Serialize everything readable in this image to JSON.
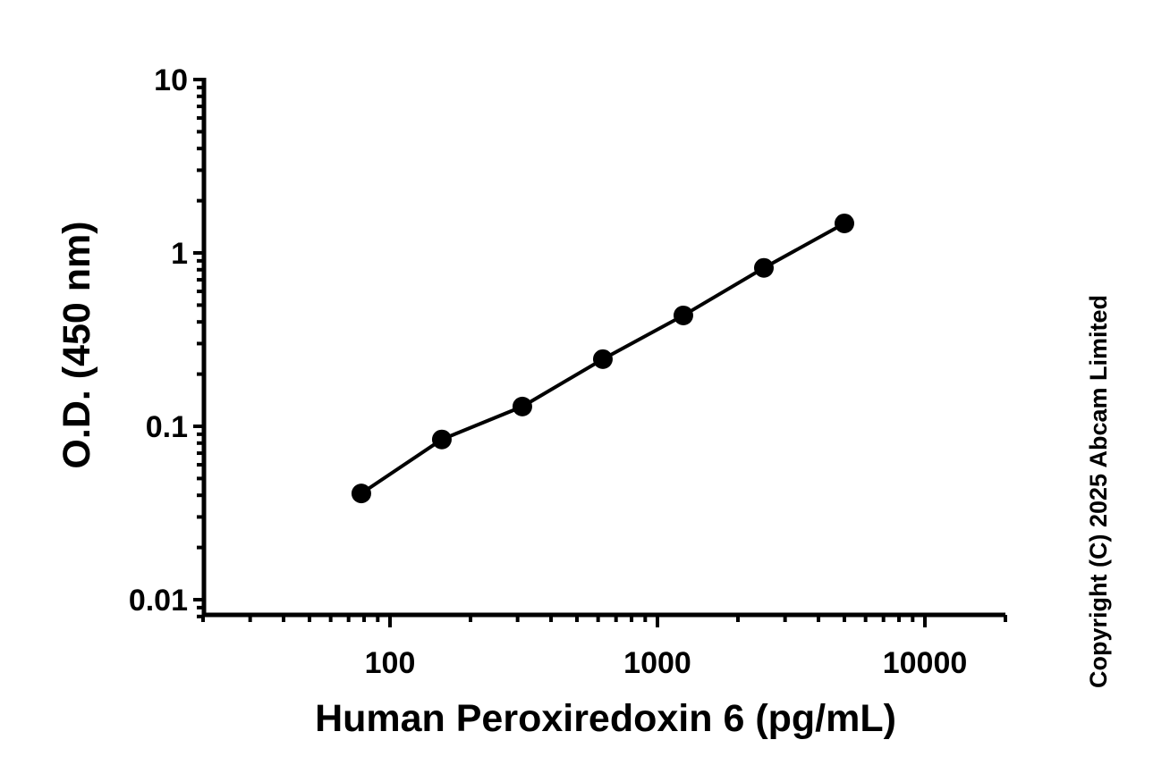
{
  "chart_data": {
    "type": "line",
    "title": "",
    "xlabel": "Human Peroxiredoxin 6 (pg/mL)",
    "ylabel": "O.D. (450 nm)",
    "xscale": "log",
    "yscale": "log",
    "xlim": [
      20,
      20000
    ],
    "ylim": [
      0.008,
      10
    ],
    "x_ticks": [
      "100",
      "1000",
      "10000"
    ],
    "x_tick_values": [
      100,
      1000,
      10000
    ],
    "y_ticks": [
      "0.01",
      "0.1",
      "1",
      "10"
    ],
    "y_tick_values": [
      0.01,
      0.1,
      1,
      10
    ],
    "grid": false,
    "series": [
      {
        "x": [
          78.125,
          156.25,
          312.5,
          625,
          1250,
          2500,
          5000
        ],
        "y": [
          0.041,
          0.084,
          0.13,
          0.244,
          0.436,
          0.82,
          1.48
        ],
        "color": "#000000",
        "marker": "circle"
      }
    ]
  },
  "copyright": "Copyright (C) 2025 Abcam Limited"
}
